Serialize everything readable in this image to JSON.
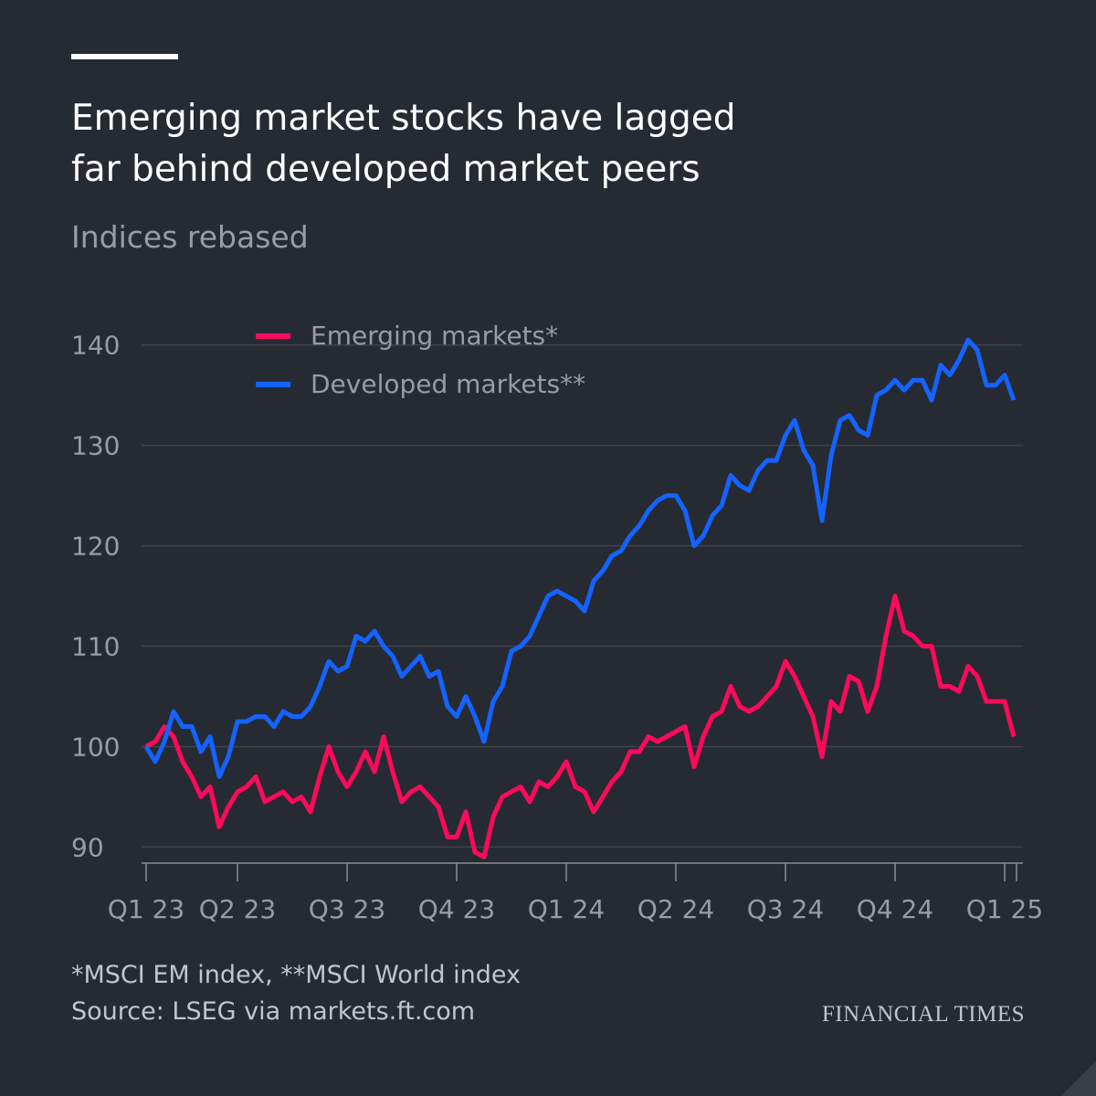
{
  "chart_data": {
    "type": "line",
    "title": "Emerging market stocks have lagged far behind developed market peers",
    "subtitle": "Indices rebased",
    "footnote": "*MSCI EM index, **MSCI World index",
    "source": "Source: LSEG via markets.ft.com",
    "brand": "FINANCIAL TIMES",
    "categories": [
      "Q1 23",
      null,
      null,
      null,
      null,
      null,
      null,
      null,
      null,
      null,
      "Q2 23",
      null,
      null,
      null,
      null,
      null,
      null,
      null,
      null,
      null,
      null,
      null,
      "Q3 23",
      null,
      null,
      null,
      null,
      null,
      null,
      null,
      null,
      null,
      null,
      null,
      "Q4 23",
      null,
      null,
      null,
      null,
      null,
      null,
      null,
      null,
      null,
      null,
      null,
      "Q1 24",
      null,
      null,
      null,
      null,
      null,
      null,
      null,
      null,
      null,
      null,
      null,
      "Q2 24",
      null,
      null,
      null,
      null,
      null,
      null,
      null,
      null,
      null,
      null,
      null,
      "Q3 24",
      null,
      null,
      null,
      null,
      null,
      null,
      null,
      null,
      null,
      null,
      null,
      "Q4 24",
      null,
      null,
      null,
      null,
      null,
      null,
      null,
      null,
      null,
      null,
      null,
      "Q1 25",
      null
    ],
    "series": [
      {
        "name": "Emerging markets*",
        "color": "#ff0a5a",
        "values": [
          100,
          100.5,
          102,
          101,
          98.5,
          97,
          95,
          96,
          92,
          94,
          95.5,
          96,
          97,
          94.5,
          95,
          95.5,
          94.5,
          95,
          93.5,
          97,
          100,
          97.5,
          96,
          97.5,
          99.5,
          97.5,
          101,
          97.5,
          94.5,
          95.5,
          96,
          95,
          94,
          91,
          91,
          93.5,
          89.5,
          89,
          93,
          95,
          95.5,
          96,
          94.5,
          96.5,
          96,
          97,
          98.5,
          96,
          95.5,
          93.5,
          95,
          96.5,
          97.5,
          99.5,
          99.5,
          101,
          100.5,
          101,
          101.5,
          102,
          98,
          101,
          103,
          103.5,
          106,
          104,
          103.5,
          104,
          105,
          106,
          108.5,
          107,
          105,
          103,
          99,
          104.5,
          103.5,
          107,
          106.5,
          103.5,
          106,
          111,
          115,
          111.5,
          111,
          110,
          110,
          106,
          106,
          105.5,
          108,
          107,
          104.5,
          104.5,
          104.5,
          101
        ]
      },
      {
        "name": "Developed markets**",
        "color": "#1463ff",
        "values": [
          100,
          98.5,
          100.5,
          103.5,
          102,
          102,
          99.5,
          101,
          97,
          99,
          102.5,
          102.5,
          103,
          103,
          102,
          103.5,
          103,
          103,
          104,
          106,
          108.5,
          107.5,
          108,
          111,
          110.5,
          111.5,
          110,
          109,
          107,
          108,
          109,
          107,
          107.5,
          104,
          103,
          105,
          103,
          100.5,
          104.5,
          106,
          109.5,
          110,
          111,
          113,
          115,
          115.5,
          115,
          114.5,
          113.5,
          116.5,
          117.5,
          119,
          119.5,
          121,
          122,
          123.5,
          124.5,
          125,
          125,
          123.5,
          120,
          121,
          123,
          124,
          127,
          126,
          125.5,
          127.5,
          128.5,
          128.5,
          131,
          132.5,
          129.5,
          128,
          122.5,
          129,
          132.5,
          133,
          131.5,
          131,
          135,
          135.5,
          136.5,
          135.5,
          136.5,
          136.5,
          134.5,
          138,
          137,
          138.5,
          140.5,
          139.5,
          136,
          136,
          137,
          134.5
        ]
      }
    ],
    "ylim": [
      88.4,
      140.7
    ],
    "yticks": [
      90,
      100,
      110,
      120,
      130,
      140
    ],
    "grid": true
  }
}
